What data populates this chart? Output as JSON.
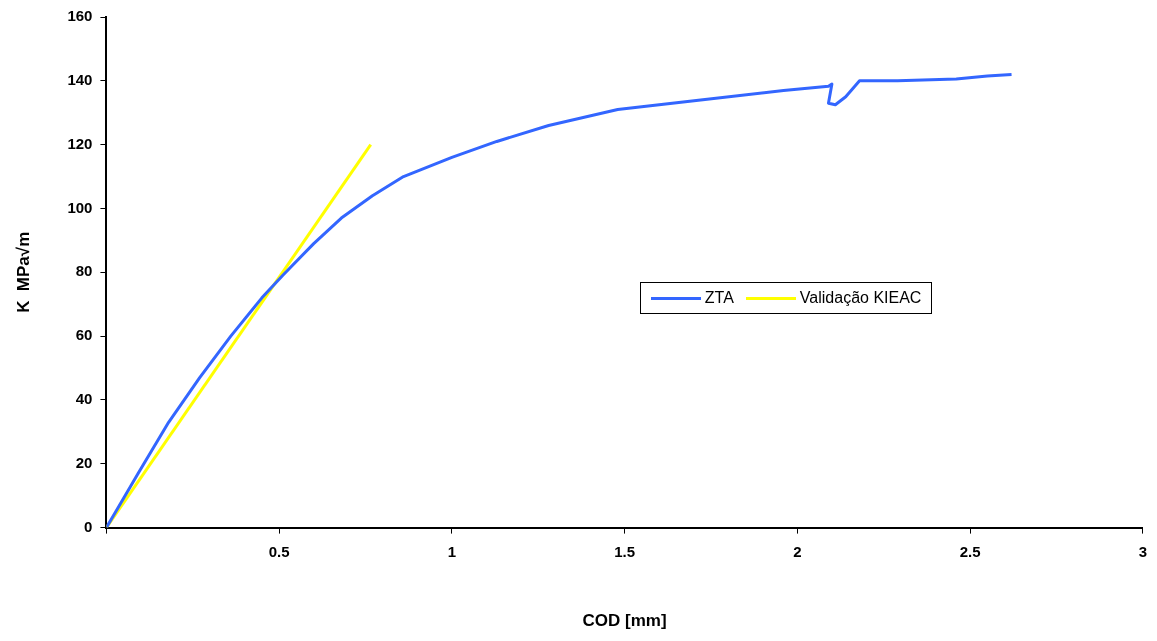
{
  "chart_data": {
    "type": "line",
    "xlabel": "COD [mm]",
    "ylabel": "K  MPa√m",
    "xlim": [
      0,
      3
    ],
    "xticks": [
      {
        "value": 0,
        "label": null
      },
      0.5,
      1,
      1.5,
      2,
      2.5,
      3
    ],
    "ylim": [
      0,
      160
    ],
    "yticks": [
      0,
      20,
      40,
      60,
      80,
      100,
      120,
      140,
      160
    ],
    "grid": false,
    "legend": "right",
    "marker": "none",
    "line_style": "solid",
    "series": [
      {
        "name": "ZTA",
        "color": "#3366ff",
        "x": [
          0,
          0.092,
          0.18,
          0.27,
          0.36,
          0.45,
          0.51,
          0.6,
          0.68,
          0.77,
          0.86,
          1.0,
          1.13,
          1.28,
          1.48,
          1.72,
          1.96,
          2.09,
          2.1,
          2.09,
          2.11,
          2.14,
          2.18,
          2.29,
          2.46,
          2.55,
          2.62
        ],
        "values": [
          0,
          17,
          33,
          47,
          60,
          72,
          79,
          89,
          97,
          104,
          110,
          116,
          121,
          126,
          131,
          134,
          137,
          138.3,
          139,
          133,
          132.5,
          135,
          140,
          140,
          140.6,
          141.5,
          142
        ]
      },
      {
        "name": "Validação KIEAC",
        "color": "#ffff00",
        "x": [
          0,
          0.765
        ],
        "values": [
          0,
          120
        ]
      }
    ]
  }
}
